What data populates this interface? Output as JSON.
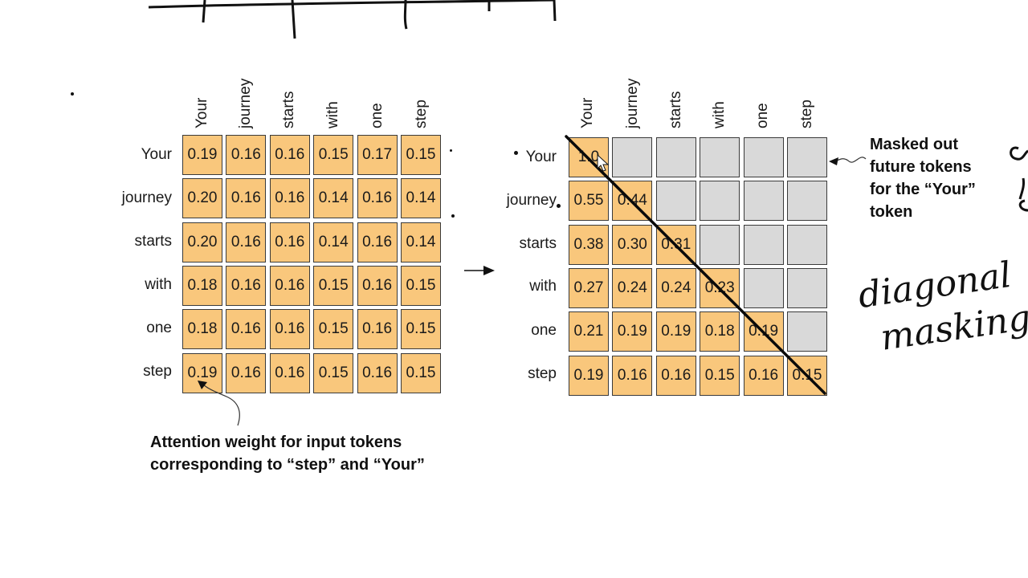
{
  "tokens": [
    "Your",
    "journey",
    "starts",
    "with",
    "one",
    "step"
  ],
  "left_matrix": {
    "rows": [
      [
        "0.19",
        "0.16",
        "0.16",
        "0.15",
        "0.17",
        "0.15"
      ],
      [
        "0.20",
        "0.16",
        "0.16",
        "0.14",
        "0.16",
        "0.14"
      ],
      [
        "0.20",
        "0.16",
        "0.16",
        "0.14",
        "0.16",
        "0.14"
      ],
      [
        "0.18",
        "0.16",
        "0.16",
        "0.15",
        "0.16",
        "0.15"
      ],
      [
        "0.18",
        "0.16",
        "0.16",
        "0.15",
        "0.16",
        "0.15"
      ],
      [
        "0.19",
        "0.16",
        "0.16",
        "0.15",
        "0.16",
        "0.15"
      ]
    ]
  },
  "right_matrix": {
    "rows": [
      [
        "1.0",
        "",
        "",
        "",
        "",
        ""
      ],
      [
        "0.55",
        "0.44",
        "",
        "",
        "",
        ""
      ],
      [
        "0.38",
        "0.30",
        "0.31",
        "",
        "",
        ""
      ],
      [
        "0.27",
        "0.24",
        "0.24",
        "0.23",
        "",
        ""
      ],
      [
        "0.21",
        "0.19",
        "0.19",
        "0.18",
        "0.19",
        ""
      ],
      [
        "0.19",
        "0.16",
        "0.16",
        "0.15",
        "0.16",
        "0.15"
      ]
    ]
  },
  "captions": {
    "left_line1": "Attention weight for input tokens",
    "left_line2": "corresponding to “step” and “Your”",
    "right_line1": "Masked out",
    "right_line2": "future tokens",
    "right_line3": "for the “Your”",
    "right_line4": "token"
  },
  "handwriting": {
    "line1": "diagonal",
    "line2": "masking"
  },
  "colors": {
    "filled_cell": "#f9c77c",
    "masked_cell": "#d9d9d9",
    "ink": "#111111"
  }
}
